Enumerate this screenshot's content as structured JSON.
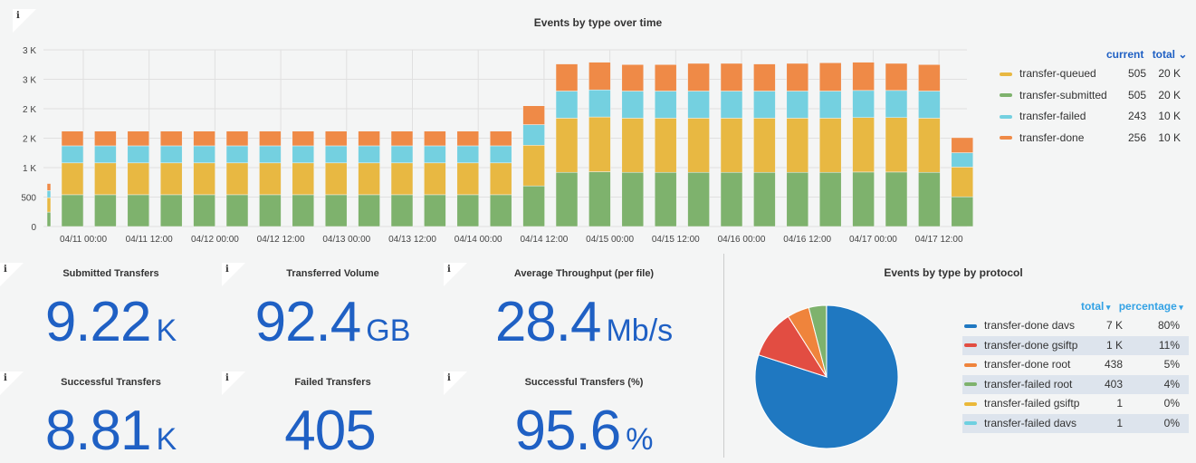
{
  "top_panel": {
    "title": "Events by type over time",
    "info_icon": "i",
    "legend": {
      "headers": {
        "current": "current",
        "total": "total",
        "sort_icon": "chevron-down-icon"
      },
      "items": [
        {
          "name": "transfer-queued",
          "current": "505",
          "total": "20 K",
          "color": "#e8b842"
        },
        {
          "name": "transfer-submitted",
          "current": "505",
          "total": "20 K",
          "color": "#7eb26d"
        },
        {
          "name": "transfer-failed",
          "current": "243",
          "total": "10 K",
          "color": "#74d0e0"
        },
        {
          "name": "transfer-done",
          "current": "256",
          "total": "10 K",
          "color": "#ef8a47"
        }
      ]
    }
  },
  "chart_data": {
    "type": "bar",
    "stacked": true,
    "title": "Events by type over time",
    "ylim": [
      0,
      3000
    ],
    "y_ticks": [
      {
        "v": 0,
        "label": "0"
      },
      {
        "v": 500,
        "label": "500"
      },
      {
        "v": 1000,
        "label": "1 K"
      },
      {
        "v": 1500,
        "label": "2 K"
      },
      {
        "v": 2000,
        "label": "2 K"
      },
      {
        "v": 2500,
        "label": "3 K"
      },
      {
        "v": 3000,
        "label": "3 K"
      }
    ],
    "x_ticks": [
      "04/11 00:00",
      "04/11 12:00",
      "04/12 00:00",
      "04/12 12:00",
      "04/13 00:00",
      "04/13 12:00",
      "04/14 00:00",
      "04/14 12:00",
      "04/15 00:00",
      "04/15 12:00",
      "04/16 00:00",
      "04/16 12:00",
      "04/17 00:00",
      "04/17 12:00"
    ],
    "x": [
      "04/10 18:00",
      "04/11 00:00",
      "04/11 06:00",
      "04/11 12:00",
      "04/11 18:00",
      "04/12 00:00",
      "04/12 06:00",
      "04/12 12:00",
      "04/12 18:00",
      "04/13 00:00",
      "04/13 06:00",
      "04/13 12:00",
      "04/13 18:00",
      "04/14 00:00",
      "04/14 06:00",
      "04/14 12:00",
      "04/14 18:00",
      "04/15 00:00",
      "04/15 06:00",
      "04/15 12:00",
      "04/15 18:00",
      "04/16 00:00",
      "04/16 06:00",
      "04/16 12:00",
      "04/16 18:00",
      "04/17 00:00",
      "04/17 06:00",
      "04/17 12:00",
      "04/17 18:00"
    ],
    "grid": true,
    "legend_placement": "right",
    "series": [
      {
        "name": "transfer-submitted",
        "color": "#7eb26d",
        "values": [
          245,
          540,
          540,
          540,
          540,
          540,
          540,
          540,
          540,
          540,
          540,
          540,
          540,
          540,
          540,
          690,
          920,
          930,
          920,
          920,
          920,
          920,
          920,
          920,
          920,
          925,
          925,
          920,
          505
        ]
      },
      {
        "name": "transfer-queued",
        "color": "#e8b842",
        "values": [
          245,
          540,
          540,
          540,
          540,
          540,
          540,
          540,
          540,
          540,
          540,
          540,
          540,
          540,
          540,
          690,
          920,
          930,
          920,
          920,
          920,
          920,
          920,
          920,
          920,
          925,
          925,
          920,
          505
        ]
      },
      {
        "name": "transfer-failed",
        "color": "#74d0e0",
        "values": [
          120,
          290,
          290,
          290,
          290,
          290,
          290,
          290,
          290,
          290,
          290,
          290,
          290,
          290,
          290,
          350,
          460,
          460,
          460,
          460,
          460,
          460,
          460,
          460,
          460,
          460,
          460,
          460,
          243
        ]
      },
      {
        "name": "transfer-done",
        "color": "#ef8a47",
        "values": [
          120,
          250,
          250,
          250,
          250,
          250,
          250,
          250,
          250,
          250,
          250,
          250,
          250,
          250,
          250,
          320,
          460,
          470,
          450,
          450,
          470,
          470,
          460,
          470,
          480,
          480,
          460,
          450,
          256
        ]
      }
    ]
  },
  "stats": [
    {
      "title": "Submitted Transfers",
      "value": "9.22",
      "unit": "K"
    },
    {
      "title": "Transferred Volume",
      "value": "92.4",
      "unit": "GB"
    },
    {
      "title": "Average Throughput (per file)",
      "value": "28.4",
      "unit": "Mb/s"
    },
    {
      "title": "Successful Transfers",
      "value": "8.81",
      "unit": "K"
    },
    {
      "title": "Failed Transfers",
      "value": "405",
      "unit": ""
    },
    {
      "title": "Successful Transfers (%)",
      "value": "95.6",
      "unit": "%"
    }
  ],
  "pie_panel": {
    "title": "Events by type by protocol",
    "headers": {
      "total": "total",
      "percentage": "percentage"
    },
    "items": [
      {
        "name": "transfer-done davs",
        "total": "7 K",
        "percentage": "80%",
        "value": 80,
        "color": "#1f78c1"
      },
      {
        "name": "transfer-done gsiftp",
        "total": "1 K",
        "percentage": "11%",
        "value": 11,
        "color": "#e24d42"
      },
      {
        "name": "transfer-done root",
        "total": "438",
        "percentage": "5%",
        "value": 5,
        "color": "#ef843c"
      },
      {
        "name": "transfer-failed root",
        "total": "403",
        "percentage": "4%",
        "value": 4,
        "color": "#7eb26d"
      },
      {
        "name": "transfer-failed gsiftp",
        "total": "1",
        "percentage": "0%",
        "value": 0.01,
        "color": "#eab839"
      },
      {
        "name": "transfer-failed davs",
        "total": "1",
        "percentage": "0%",
        "value": 0.01,
        "color": "#6ed0e0"
      }
    ]
  }
}
